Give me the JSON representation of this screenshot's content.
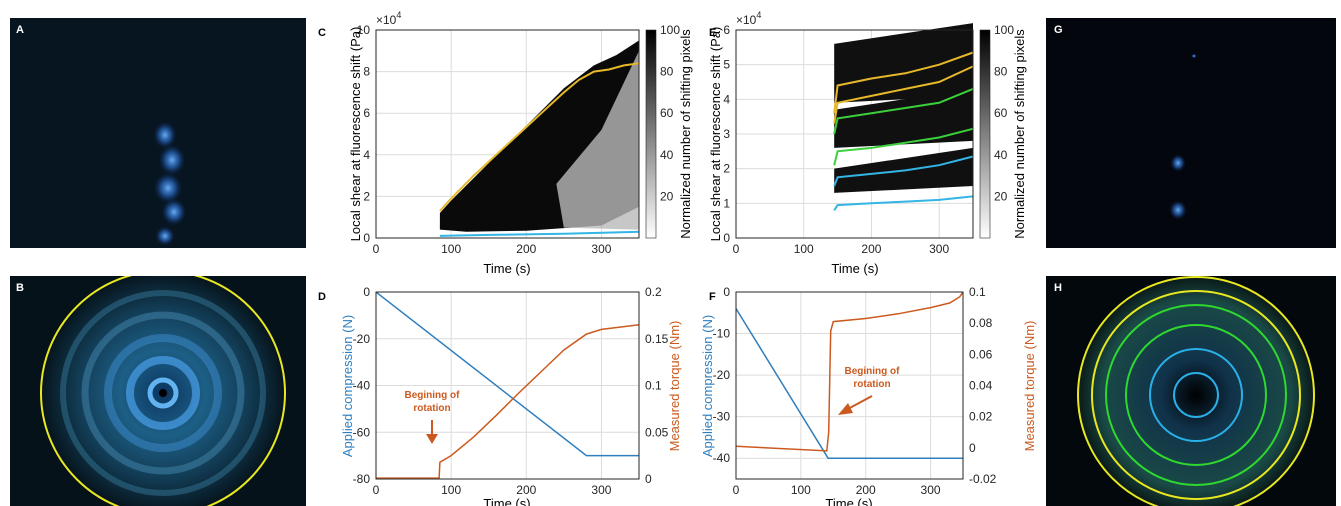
{
  "colors": {
    "blue": "#2f7fbf",
    "orange": "#cc5a1f",
    "yellow": "#e6b82a",
    "green": "#3ccf3c",
    "light_blue": "#33b5e5",
    "ring_yellow": "#e8e820",
    "ring_green": "#2ed82e",
    "ring_blue": "#2ab0e8"
  },
  "images": [
    {
      "label": "A",
      "content": "blue-fluorescence-streak"
    },
    {
      "label": "B",
      "content": "fluorescence-spiral-with-yellow-circle"
    },
    {
      "label": "G",
      "content": "two-small-blue-spots"
    },
    {
      "label": "H",
      "content": "concentric-rings-yellow-green-blue"
    }
  ],
  "chart_data": [
    {
      "panel": "C",
      "type": "heatmap",
      "xlabel": "Time (s)",
      "ylabel": "Local shear at fluorescence shift (Pa)",
      "y_exponent": "×10^4",
      "xlim": [
        0,
        350
      ],
      "ylim": [
        0,
        10
      ],
      "xticks": [
        "0",
        "100",
        "200",
        "300"
      ],
      "yticks": [
        "0",
        "2",
        "4",
        "6",
        "8",
        "10"
      ],
      "colorbar": {
        "label": "Normalized number of shifting pixels",
        "ticks": [
          "20",
          "40",
          "60",
          "80",
          "100"
        ],
        "range": [
          0,
          100
        ]
      },
      "grid": true,
      "region_upper_edge": {
        "x": [
          85,
          100,
          150,
          200,
          250,
          290,
          320,
          350
        ],
        "y": [
          1.2,
          1.8,
          3.6,
          5.4,
          7.2,
          8.3,
          8.8,
          9.5
        ]
      },
      "lines": [
        {
          "color": "yellow",
          "x": [
            85,
            100,
            130,
            160,
            190,
            220,
            250,
            270,
            290,
            310,
            330,
            350
          ],
          "y": [
            1.3,
            1.9,
            3.0,
            4.0,
            5.0,
            6.0,
            7.0,
            7.6,
            8.0,
            8.1,
            8.3,
            8.4
          ]
        },
        {
          "color": "light_blue",
          "x": [
            85,
            150,
            250,
            350
          ],
          "y": [
            0.1,
            0.15,
            0.2,
            0.3
          ]
        }
      ]
    },
    {
      "panel": "D",
      "type": "line",
      "xlabel": "Time (s)",
      "ylabel_left": "Applied compression (N)",
      "ylabel_right": "Measured torque (Nm)",
      "xlim": [
        0,
        350
      ],
      "ylim_left": [
        -80,
        0
      ],
      "ylim_right": [
        0,
        0.2
      ],
      "xticks": [
        "0",
        "100",
        "200",
        "300"
      ],
      "yticks_left": [
        "-80",
        "-60",
        "-40",
        "-20",
        "0"
      ],
      "yticks_right": [
        "0",
        "0.05",
        "0.1",
        "0.15",
        "0.2"
      ],
      "grid": true,
      "annotation": "Begining of\nrotation",
      "series": [
        {
          "axis": "left",
          "color": "blue",
          "x": [
            0,
            280,
            350
          ],
          "y": [
            0,
            -70,
            -70
          ]
        },
        {
          "axis": "right",
          "color": "orange",
          "x": [
            0,
            84,
            85,
            100,
            130,
            160,
            190,
            220,
            250,
            280,
            300,
            330,
            350
          ],
          "y": [
            0.001,
            0.001,
            0.018,
            0.025,
            0.045,
            0.068,
            0.092,
            0.115,
            0.138,
            0.155,
            0.16,
            0.163,
            0.165
          ]
        }
      ]
    },
    {
      "panel": "E",
      "type": "heatmap",
      "xlabel": "Time (s)",
      "ylabel": "Local shear at fluorescence shift (Pa)",
      "y_exponent": "×10^4",
      "xlim": [
        0,
        350
      ],
      "ylim": [
        0,
        6
      ],
      "xticks": [
        "0",
        "100",
        "200",
        "300"
      ],
      "yticks": [
        "0",
        "1",
        "2",
        "3",
        "4",
        "5",
        "6"
      ],
      "colorbar": {
        "label": "Normalized number of shifting pixels",
        "ticks": [
          "20",
          "40",
          "60",
          "80",
          "100"
        ],
        "range": [
          0,
          100
        ]
      },
      "grid": true,
      "bands": [
        [
          1.3,
          2.0
        ],
        [
          2.6,
          3.7
        ],
        [
          3.9,
          5.6
        ]
      ],
      "lines": [
        {
          "color": "yellow",
          "x": [
            145,
            150,
            200,
            250,
            300,
            350
          ],
          "y": [
            3.6,
            4.4,
            4.6,
            4.75,
            5.0,
            5.35
          ]
        },
        {
          "color": "yellow",
          "x": [
            145,
            150,
            200,
            250,
            300,
            350
          ],
          "y": [
            3.3,
            3.9,
            4.1,
            4.3,
            4.5,
            4.95
          ]
        },
        {
          "color": "green",
          "x": [
            145,
            150,
            200,
            250,
            300,
            350
          ],
          "y": [
            3.0,
            3.45,
            3.6,
            3.75,
            3.9,
            4.3
          ]
        },
        {
          "color": "green",
          "x": [
            145,
            150,
            200,
            250,
            300,
            350
          ],
          "y": [
            2.1,
            2.5,
            2.6,
            2.75,
            2.9,
            3.15
          ]
        },
        {
          "color": "light_blue",
          "x": [
            145,
            150,
            200,
            250,
            300,
            350
          ],
          "y": [
            1.5,
            1.75,
            1.85,
            1.95,
            2.1,
            2.35
          ]
        },
        {
          "color": "light_blue",
          "x": [
            145,
            150,
            200,
            250,
            300,
            350
          ],
          "y": [
            0.8,
            0.95,
            1.0,
            1.05,
            1.1,
            1.2
          ]
        }
      ]
    },
    {
      "panel": "F",
      "type": "line",
      "xlabel": "Time (s)",
      "ylabel_left": "Applied compression (N)",
      "ylabel_right": "Measured torque (Nm)",
      "xlim": [
        0,
        350
      ],
      "ylim_left": [
        -45,
        0
      ],
      "ylim_right": [
        -0.02,
        0.1
      ],
      "xticks": [
        "0",
        "100",
        "200",
        "300"
      ],
      "yticks_left": [
        "-40",
        "-30",
        "-20",
        "-10",
        "0"
      ],
      "yticks_right": [
        "-0.02",
        "0",
        "0.02",
        "0.04",
        "0.06",
        "0.08",
        "0.1"
      ],
      "grid": true,
      "annotation": "Begining of\nrotation",
      "series": [
        {
          "axis": "left",
          "color": "blue",
          "x": [
            0,
            142,
            350
          ],
          "y": [
            -4,
            -40,
            -40
          ]
        },
        {
          "axis": "right",
          "color": "orange",
          "x": [
            0,
            140,
            143,
            146,
            150,
            200,
            250,
            300,
            330,
            345,
            350
          ],
          "y": [
            0.001,
            -0.002,
            0.01,
            0.075,
            0.081,
            0.083,
            0.086,
            0.09,
            0.093,
            0.097,
            0.1
          ]
        }
      ]
    }
  ]
}
